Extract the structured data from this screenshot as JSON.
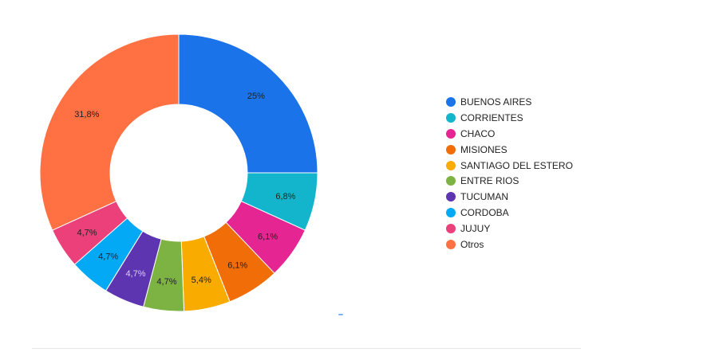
{
  "chart_data": {
    "type": "pie",
    "donut": true,
    "slices": [
      {
        "name": "BUENOS AIRES",
        "value": 25.0,
        "label": "25%",
        "color": "#1a73e8"
      },
      {
        "name": "CORRIENTES",
        "value": 6.8,
        "label": "6,8%",
        "color": "#12b5cb"
      },
      {
        "name": "CHACO",
        "value": 6.1,
        "label": "6,1%",
        "color": "#e52592"
      },
      {
        "name": "MISIONES",
        "value": 6.1,
        "label": "6,1%",
        "color": "#f06d07"
      },
      {
        "name": "SANTIAGO DEL ESTERO",
        "value": 5.4,
        "label": "5,4%",
        "color": "#f9ab00"
      },
      {
        "name": "ENTRE RIOS",
        "value": 4.7,
        "label": "4,7%",
        "color": "#7cb342"
      },
      {
        "name": "TUCUMAN",
        "value": 4.7,
        "label": "4,7%",
        "color": "#5e35b1"
      },
      {
        "name": "CORDOBA",
        "value": 4.7,
        "label": "4,7%",
        "color": "#03a9f4"
      },
      {
        "name": "JUJUY",
        "value": 4.7,
        "label": "4,7%",
        "color": "#ec407a"
      },
      {
        "name": "Otros",
        "value": 31.8,
        "label": "31,8%",
        "color": "#ff7043"
      }
    ],
    "legend_position": "right"
  }
}
